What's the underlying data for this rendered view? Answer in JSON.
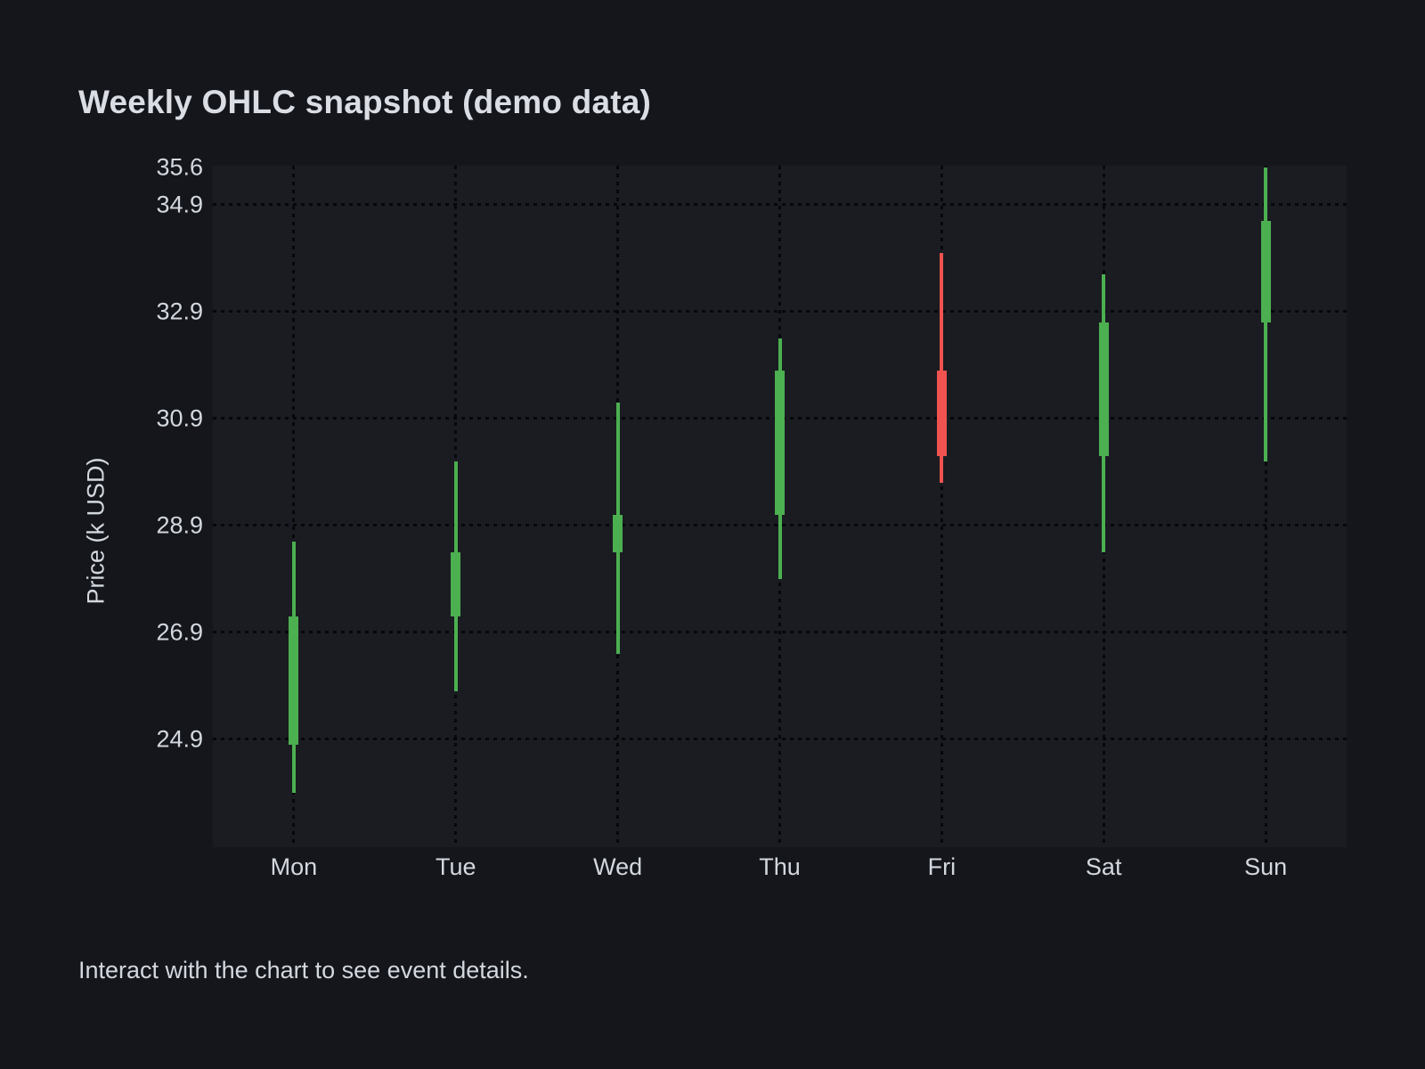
{
  "page": {
    "caption": "Interact with the chart to see event details."
  },
  "chart_data": {
    "type": "candlestick",
    "title": "Weekly OHLC snapshot (demo data)",
    "ylabel": "Price (k USD)",
    "xlabel": "",
    "categories": [
      "Mon",
      "Tue",
      "Wed",
      "Thu",
      "Fri",
      "Sat",
      "Sun"
    ],
    "series": [
      {
        "name": "Price",
        "points": [
          {
            "day": "Mon",
            "open": 24.8,
            "high": 28.6,
            "low": 23.9,
            "close": 27.2
          },
          {
            "day": "Tue",
            "open": 27.2,
            "high": 30.1,
            "low": 25.8,
            "close": 28.4
          },
          {
            "day": "Wed",
            "open": 28.4,
            "high": 31.2,
            "low": 26.5,
            "close": 29.1
          },
          {
            "day": "Thu",
            "open": 29.1,
            "high": 32.4,
            "low": 27.9,
            "close": 31.8
          },
          {
            "day": "Fri",
            "open": 31.8,
            "high": 34.0,
            "low": 29.7,
            "close": 30.2
          },
          {
            "day": "Sat",
            "open": 30.2,
            "high": 33.6,
            "low": 28.4,
            "close": 32.7
          },
          {
            "day": "Sun",
            "open": 32.7,
            "high": 35.6,
            "low": 30.1,
            "close": 34.6
          }
        ]
      }
    ],
    "ylim": [
      22.88,
      35.63
    ],
    "y_ticks": [
      {
        "label": "35.6",
        "value": 35.6,
        "gridline": false
      },
      {
        "label": "34.9",
        "value": 34.9,
        "gridline": true
      },
      {
        "label": "32.9",
        "value": 32.9,
        "gridline": true
      },
      {
        "label": "30.9",
        "value": 30.9,
        "gridline": true
      },
      {
        "label": "28.9",
        "value": 28.9,
        "gridline": true
      },
      {
        "label": "26.9",
        "value": 26.9,
        "gridline": true
      },
      {
        "label": "24.9",
        "value": 24.9,
        "gridline": true
      }
    ],
    "grid_style": "dotted",
    "x_gridlines": true,
    "legend": false,
    "colors": {
      "up": "#4caf50",
      "down": "#ef5350",
      "background": "#14161c",
      "plot_background": "#1a1c22",
      "grid": "#060709",
      "text": "#d3d7de"
    }
  }
}
